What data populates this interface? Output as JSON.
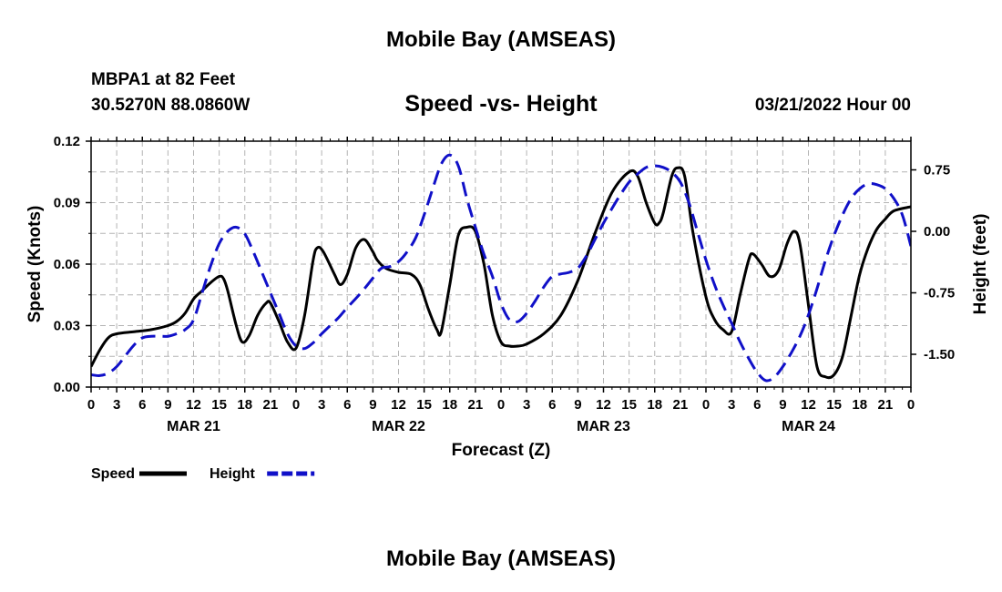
{
  "header": {
    "title": "Mobile Bay (AMSEAS)",
    "station": "MBPA1 at 82 Feet",
    "coordinates": "30.5270N  88.0860W",
    "subtitle": "Speed -vs- Height",
    "datetime": "03/21/2022 Hour 00"
  },
  "footer": {
    "title": "Mobile Bay (AMSEAS)"
  },
  "chart_data": {
    "type": "line",
    "xlabel": "Forecast (Z)",
    "ylabel": "Speed (Knots)",
    "ylabel_right": "Height (feet)",
    "xlim": [
      0,
      96
    ],
    "ylim": [
      0,
      0.12
    ],
    "ylim_right": [
      -1.9,
      1.1
    ],
    "grid": true,
    "x_ticks": [
      0,
      3,
      6,
      9,
      12,
      15,
      18,
      21,
      24,
      27,
      30,
      33,
      36,
      39,
      42,
      45,
      48,
      51,
      54,
      57,
      60,
      63,
      66,
      69,
      72,
      75,
      78,
      81,
      84,
      87,
      90,
      93,
      96
    ],
    "x_tick_labels": [
      "0",
      "3",
      "6",
      "9",
      "12",
      "15",
      "18",
      "21",
      "0",
      "3",
      "6",
      "9",
      "12",
      "15",
      "18",
      "21",
      "0",
      "3",
      "6",
      "9",
      "12",
      "15",
      "18",
      "21",
      "0",
      "3",
      "6",
      "9",
      "12",
      "15",
      "18",
      "21",
      "0"
    ],
    "date_labels": [
      {
        "x": 12,
        "label": "MAR 21"
      },
      {
        "x": 36,
        "label": "MAR 22"
      },
      {
        "x": 60,
        "label": "MAR 23"
      },
      {
        "x": 84,
        "label": "MAR 24"
      }
    ],
    "y_ticks_left": [
      0.0,
      0.03,
      0.06,
      0.09,
      0.12
    ],
    "y_tick_labels_left": [
      "0.00",
      "0.03",
      "0.06",
      "0.09",
      "0.12"
    ],
    "y_ticks_right": [
      -1.5,
      -0.75,
      0.0,
      0.75
    ],
    "y_tick_labels_right": [
      "-1.50",
      "-0.75",
      "0.00",
      "0.75"
    ],
    "series": [
      {
        "name": "Speed",
        "axis": "left",
        "color": "#000000",
        "style": "solid",
        "points": [
          [
            0,
            0.01
          ],
          [
            1,
            0.018
          ],
          [
            2,
            0.024
          ],
          [
            3,
            0.026
          ],
          [
            5,
            0.027
          ],
          [
            7,
            0.028
          ],
          [
            9,
            0.03
          ],
          [
            10,
            0.032
          ],
          [
            11,
            0.036
          ],
          [
            12,
            0.043
          ],
          [
            13,
            0.047
          ],
          [
            14,
            0.051
          ],
          [
            15,
            0.054
          ],
          [
            15.5,
            0.053
          ],
          [
            16,
            0.047
          ],
          [
            17,
            0.03
          ],
          [
            17.7,
            0.022
          ],
          [
            18.5,
            0.025
          ],
          [
            19.5,
            0.035
          ],
          [
            20.5,
            0.041
          ],
          [
            21,
            0.041
          ],
          [
            22,
            0.032
          ],
          [
            23,
            0.022
          ],
          [
            24,
            0.019
          ],
          [
            25,
            0.035
          ],
          [
            26,
            0.062
          ],
          [
            26.5,
            0.068
          ],
          [
            27.2,
            0.066
          ],
          [
            28.5,
            0.055
          ],
          [
            29.2,
            0.05
          ],
          [
            30,
            0.055
          ],
          [
            31,
            0.068
          ],
          [
            32,
            0.072
          ],
          [
            33,
            0.066
          ],
          [
            33.5,
            0.062
          ],
          [
            34.5,
            0.058
          ],
          [
            36,
            0.056
          ],
          [
            37.5,
            0.055
          ],
          [
            38.5,
            0.05
          ],
          [
            39.5,
            0.038
          ],
          [
            40.5,
            0.028
          ],
          [
            41,
            0.027
          ],
          [
            42,
            0.05
          ],
          [
            43,
            0.074
          ],
          [
            44,
            0.078
          ],
          [
            45,
            0.076
          ],
          [
            46,
            0.06
          ],
          [
            47,
            0.035
          ],
          [
            48,
            0.022
          ],
          [
            49,
            0.02
          ],
          [
            50,
            0.02
          ],
          [
            51,
            0.021
          ],
          [
            53,
            0.026
          ],
          [
            55,
            0.035
          ],
          [
            57,
            0.052
          ],
          [
            59,
            0.075
          ],
          [
            61,
            0.095
          ],
          [
            63,
            0.105
          ],
          [
            64,
            0.103
          ],
          [
            65,
            0.09
          ],
          [
            66,
            0.08
          ],
          [
            66.5,
            0.08
          ],
          [
            67,
            0.085
          ],
          [
            68,
            0.103
          ],
          [
            68.7,
            0.107
          ],
          [
            69.5,
            0.103
          ],
          [
            70.5,
            0.075
          ],
          [
            72,
            0.044
          ],
          [
            73,
            0.033
          ],
          [
            74,
            0.028
          ],
          [
            75,
            0.027
          ],
          [
            76,
            0.045
          ],
          [
            77,
            0.062
          ],
          [
            77.5,
            0.065
          ],
          [
            78.5,
            0.06
          ],
          [
            79.5,
            0.054
          ],
          [
            80.5,
            0.057
          ],
          [
            81.5,
            0.07
          ],
          [
            82.3,
            0.076
          ],
          [
            83,
            0.07
          ],
          [
            84,
            0.04
          ],
          [
            85,
            0.01
          ],
          [
            86,
            0.005
          ],
          [
            87,
            0.006
          ],
          [
            88,
            0.015
          ],
          [
            89,
            0.035
          ],
          [
            90,
            0.055
          ],
          [
            91,
            0.068
          ],
          [
            92,
            0.077
          ],
          [
            93,
            0.082
          ],
          [
            94,
            0.086
          ],
          [
            96,
            0.088
          ]
        ]
      },
      {
        "name": "Height",
        "axis": "right",
        "color": "#1010C8",
        "style": "dashed",
        "points": [
          [
            0,
            -1.75
          ],
          [
            1,
            -1.76
          ],
          [
            2,
            -1.73
          ],
          [
            3,
            -1.65
          ],
          [
            4,
            -1.52
          ],
          [
            5,
            -1.39
          ],
          [
            6,
            -1.3
          ],
          [
            7,
            -1.28
          ],
          [
            8,
            -1.28
          ],
          [
            9,
            -1.28
          ],
          [
            10,
            -1.25
          ],
          [
            11,
            -1.2
          ],
          [
            12,
            -1.08
          ],
          [
            13,
            -0.75
          ],
          [
            14,
            -0.42
          ],
          [
            15,
            -0.15
          ],
          [
            16,
            0.0
          ],
          [
            17,
            0.05
          ],
          [
            18,
            -0.03
          ],
          [
            19,
            -0.25
          ],
          [
            20,
            -0.5
          ],
          [
            21,
            -0.75
          ],
          [
            22,
            -1.0
          ],
          [
            23,
            -1.25
          ],
          [
            24,
            -1.4
          ],
          [
            25,
            -1.43
          ],
          [
            26,
            -1.36
          ],
          [
            27,
            -1.25
          ],
          [
            28,
            -1.15
          ],
          [
            29,
            -1.05
          ],
          [
            30,
            -0.93
          ],
          [
            31,
            -0.82
          ],
          [
            32,
            -0.7
          ],
          [
            33,
            -0.57
          ],
          [
            34,
            -0.45
          ],
          [
            35,
            -0.43
          ],
          [
            36,
            -0.37
          ],
          [
            37,
            -0.25
          ],
          [
            38,
            -0.08
          ],
          [
            39,
            0.2
          ],
          [
            40,
            0.52
          ],
          [
            41,
            0.82
          ],
          [
            42,
            0.93
          ],
          [
            43,
            0.8
          ],
          [
            44,
            0.4
          ],
          [
            45,
            0.05
          ],
          [
            46,
            -0.28
          ],
          [
            47,
            -0.55
          ],
          [
            48,
            -0.88
          ],
          [
            49,
            -1.08
          ],
          [
            50,
            -1.1
          ],
          [
            51,
            -1.0
          ],
          [
            52,
            -0.85
          ],
          [
            53,
            -0.68
          ],
          [
            54,
            -0.55
          ],
          [
            55,
            -0.52
          ],
          [
            56,
            -0.5
          ],
          [
            57,
            -0.45
          ],
          [
            58,
            -0.3
          ],
          [
            59,
            -0.1
          ],
          [
            60,
            0.1
          ],
          [
            61,
            0.28
          ],
          [
            62,
            0.45
          ],
          [
            63,
            0.6
          ],
          [
            64,
            0.7
          ],
          [
            65,
            0.78
          ],
          [
            66,
            0.8
          ],
          [
            67,
            0.78
          ],
          [
            68,
            0.72
          ],
          [
            69,
            0.6
          ],
          [
            70,
            0.35
          ],
          [
            71,
            0.0
          ],
          [
            72,
            -0.35
          ],
          [
            73,
            -0.65
          ],
          [
            74,
            -0.9
          ],
          [
            75,
            -1.12
          ],
          [
            76,
            -1.35
          ],
          [
            77,
            -1.55
          ],
          [
            78,
            -1.72
          ],
          [
            79,
            -1.82
          ],
          [
            80,
            -1.78
          ],
          [
            81,
            -1.65
          ],
          [
            82,
            -1.48
          ],
          [
            83,
            -1.28
          ],
          [
            84,
            -1.02
          ],
          [
            85,
            -0.7
          ],
          [
            86,
            -0.35
          ],
          [
            87,
            -0.05
          ],
          [
            88,
            0.2
          ],
          [
            89,
            0.4
          ],
          [
            90,
            0.52
          ],
          [
            91,
            0.58
          ],
          [
            92,
            0.57
          ],
          [
            93,
            0.52
          ],
          [
            94,
            0.4
          ],
          [
            95,
            0.2
          ],
          [
            96,
            -0.18
          ]
        ]
      }
    ],
    "legend": {
      "position": "bottom-left",
      "entries": [
        {
          "label": "Speed",
          "color": "#000000",
          "style": "solid"
        },
        {
          "label": "Height",
          "color": "#1010C8",
          "style": "dashed"
        }
      ]
    }
  }
}
